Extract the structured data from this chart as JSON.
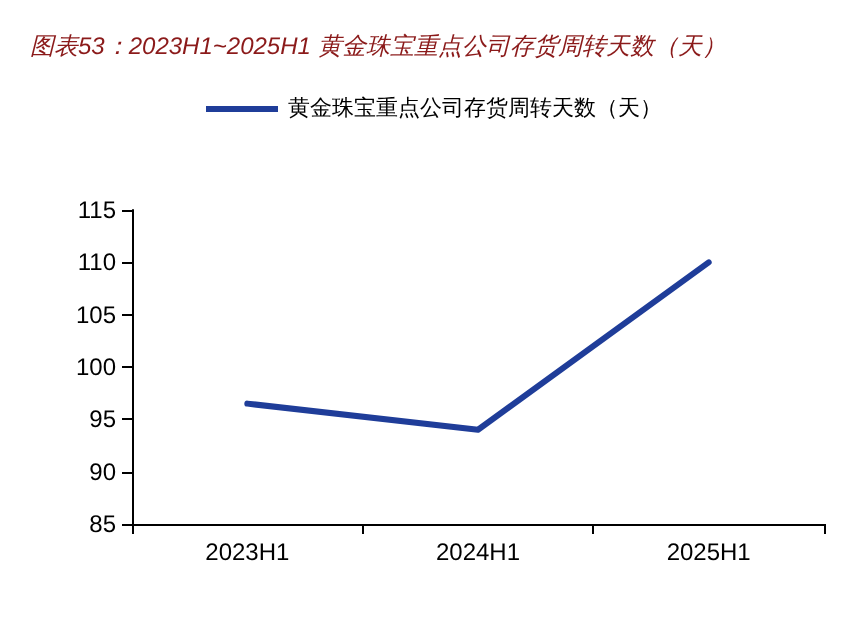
{
  "chart_data": {
    "type": "line",
    "title": "图表53：2023H1~2025H1 黄金珠宝重点公司存货周转天数（天）",
    "categories": [
      "2023H1",
      "2024H1",
      "2025H1"
    ],
    "series": [
      {
        "name": "黄金珠宝重点公司存货周转天数（天）",
        "color": "#1f3d99",
        "values": [
          96.5,
          94,
          110
        ]
      }
    ],
    "ylim": [
      85,
      115
    ],
    "yticks": [
      85,
      90,
      95,
      100,
      105,
      110,
      115
    ],
    "grid": false,
    "legend": "top",
    "marker": "none",
    "line_style": "solid"
  }
}
